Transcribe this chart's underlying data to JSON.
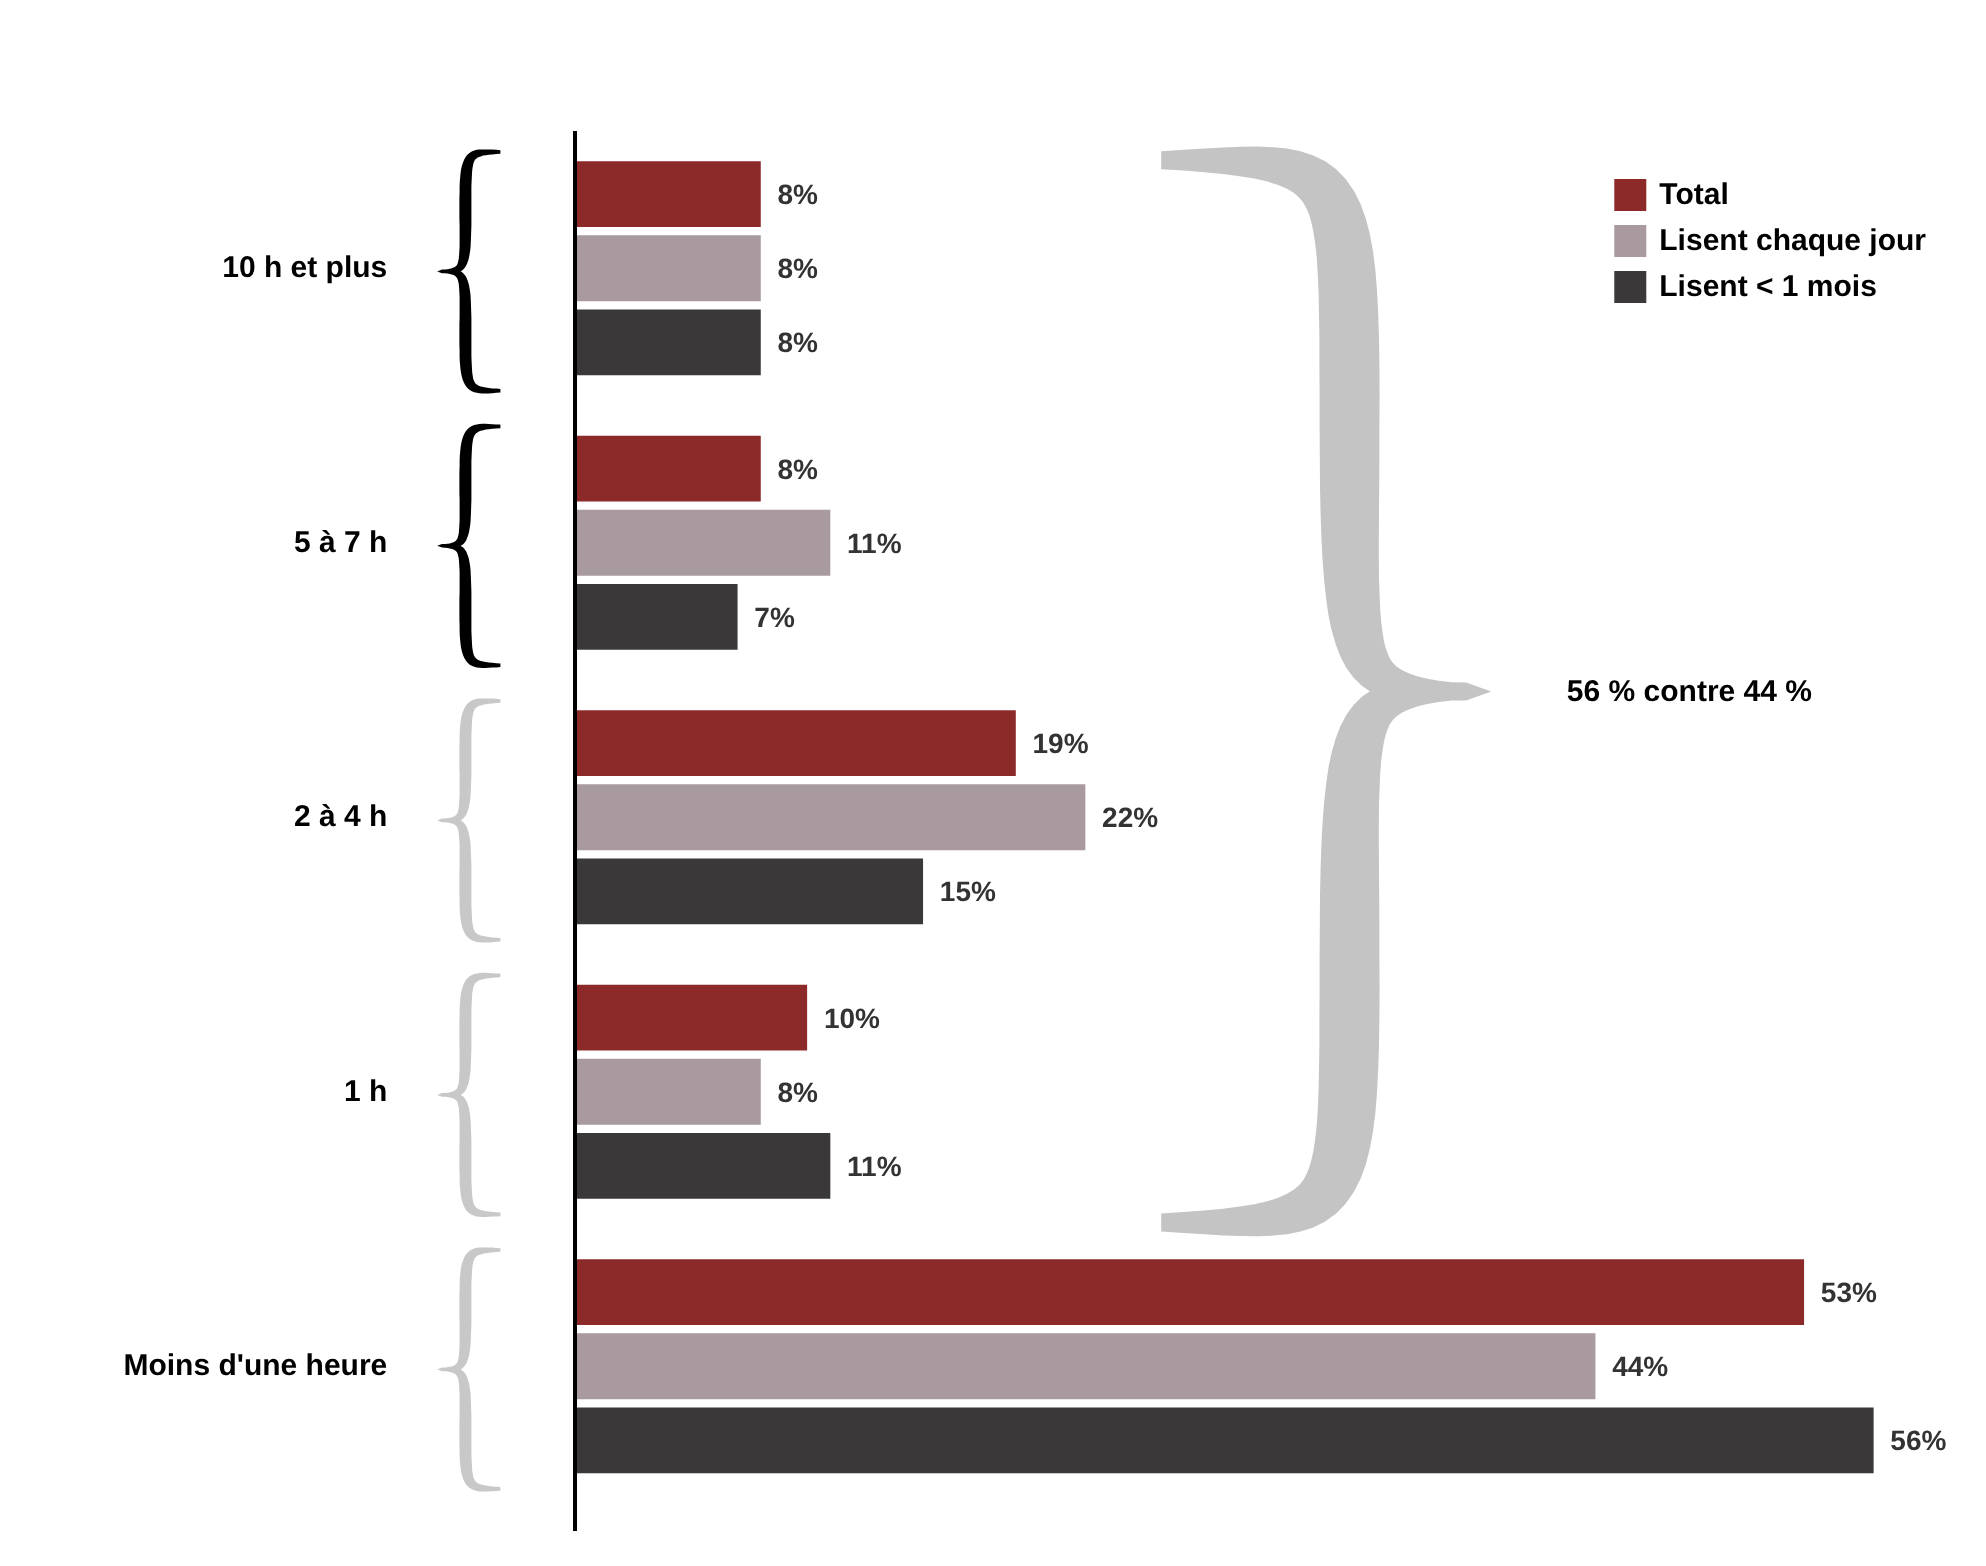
{
  "chart_data": {
    "type": "bar",
    "orientation": "horizontal",
    "categories": [
      "10 h et plus",
      "5 à 7 h",
      "2 à 4 h",
      "1 h",
      "Moins d'une heure"
    ],
    "series": [
      {
        "name": "Total",
        "color": "#8c2a2a",
        "values": [
          8,
          8,
          19,
          10,
          53
        ],
        "value_labels": [
          "8%",
          "8%",
          "19%",
          "10%",
          "53%"
        ]
      },
      {
        "name": "Lisent chaque jour",
        "color": "#a89a9e",
        "values": [
          8,
          11,
          22,
          8,
          44
        ],
        "value_labels": [
          "8%",
          "11%",
          "22%",
          "8%",
          "44%"
        ]
      },
      {
        "name": "Lisent < 1 mois",
        "color": "#3a3839",
        "values": [
          8,
          7,
          15,
          11,
          56
        ],
        "value_labels": [
          "8%",
          "7%",
          "15%",
          "11%",
          "56%"
        ]
      }
    ],
    "annotations": [
      "56 % contre 44 %"
    ],
    "legend": "top right",
    "grid": false,
    "tick_labels": "y"
  }
}
